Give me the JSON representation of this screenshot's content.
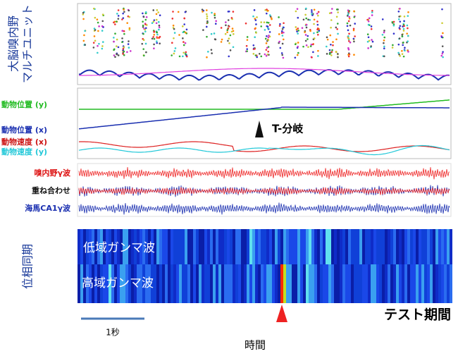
{
  "labels": {
    "multiunit": [
      "大脳嗅内野",
      "マルチユニット"
    ],
    "pos_y": "動物位置 (y)",
    "t_branch": "T-分岐",
    "pos_x": "動物位置 (x)",
    "vel_x": "動物速度 (x)",
    "vel_y": "動物速度 (y)",
    "ec_gamma": "嗅内野γ波",
    "overlay": "重ね合わせ",
    "ca1_gamma": "海馬CA1γ波",
    "phase_sync": "位相同期",
    "low_gamma": "低域ガンマ波",
    "high_gamma": "高域ガンマ波",
    "scale": "1秒",
    "time": "時間",
    "test": "テスト期間"
  }
}
